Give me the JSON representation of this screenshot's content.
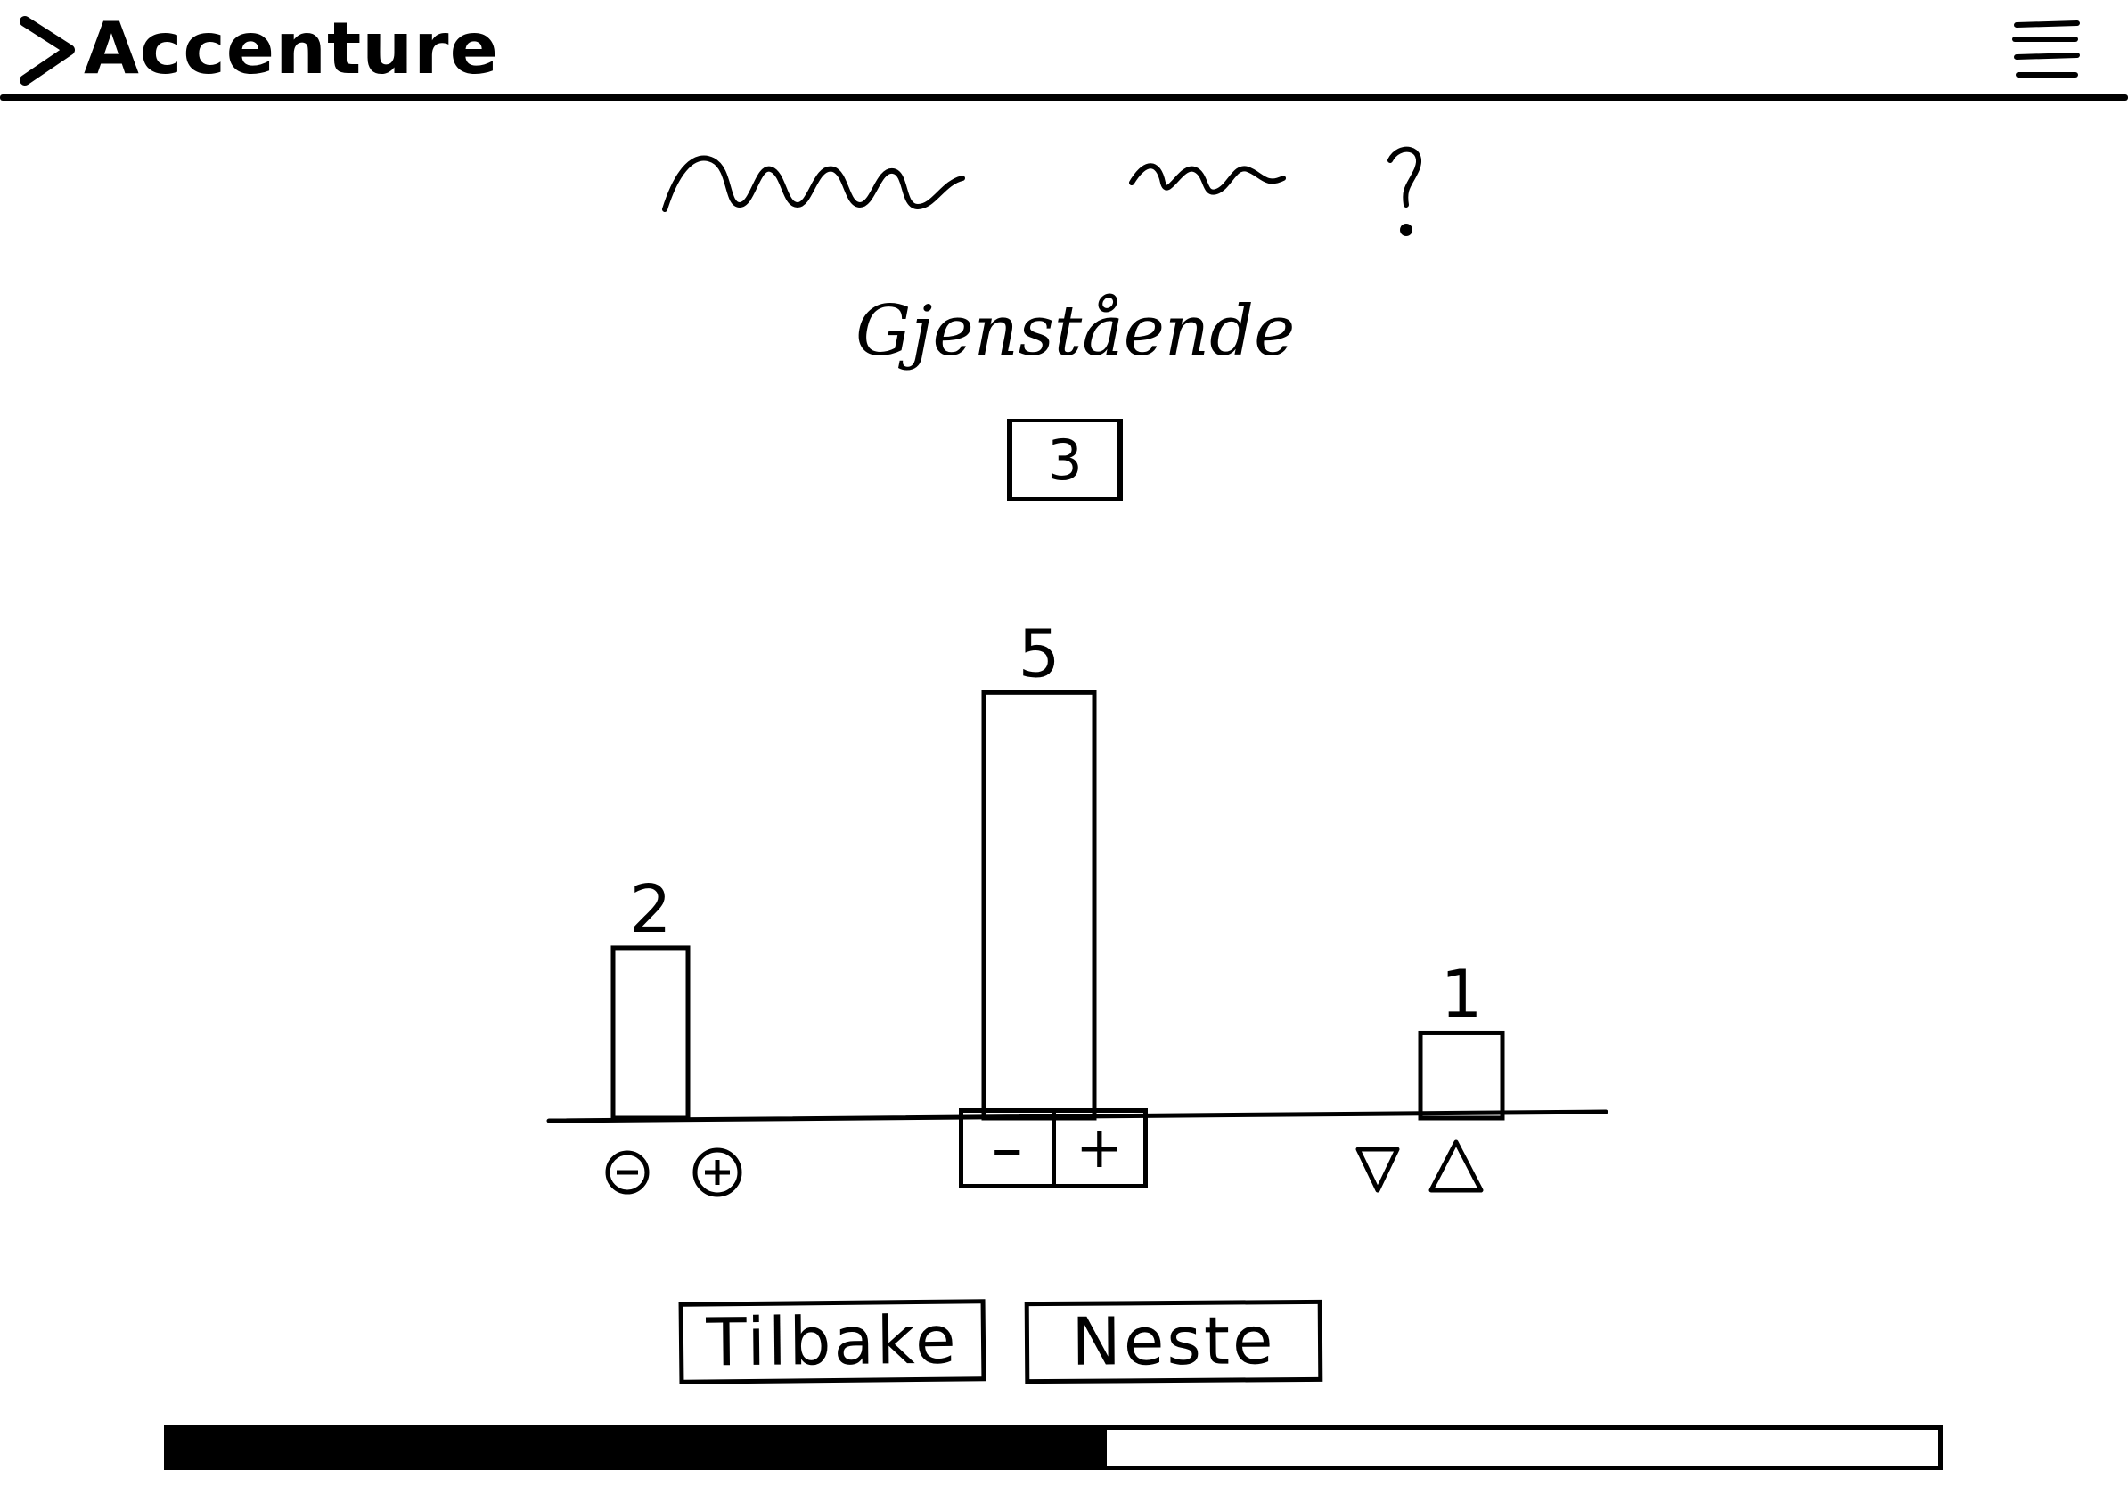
{
  "header": {
    "logo_text": "Accenture",
    "menu_icon": "hamburger-menu-icon"
  },
  "question": {
    "remaining_label": "Gjenstående",
    "remaining_value": "3"
  },
  "chart_data": {
    "type": "bar",
    "categories": [
      "",
      "",
      ""
    ],
    "values": [
      2,
      5,
      1
    ],
    "ylim": [
      0,
      5.6
    ],
    "grid": false
  },
  "controls": {
    "bar1": {
      "decrement_label": "−",
      "increment_label": "+"
    },
    "bar2": {
      "decrement_label": "–",
      "increment_label": "+"
    },
    "bar3": {
      "decrement_label": "▽",
      "increment_label": "△"
    }
  },
  "nav": {
    "back_label": "Tilbake",
    "next_label": "Neste"
  },
  "progress": {
    "fraction": 0.53
  },
  "colors": {
    "ink": "#000000",
    "background": "#ffffff"
  }
}
